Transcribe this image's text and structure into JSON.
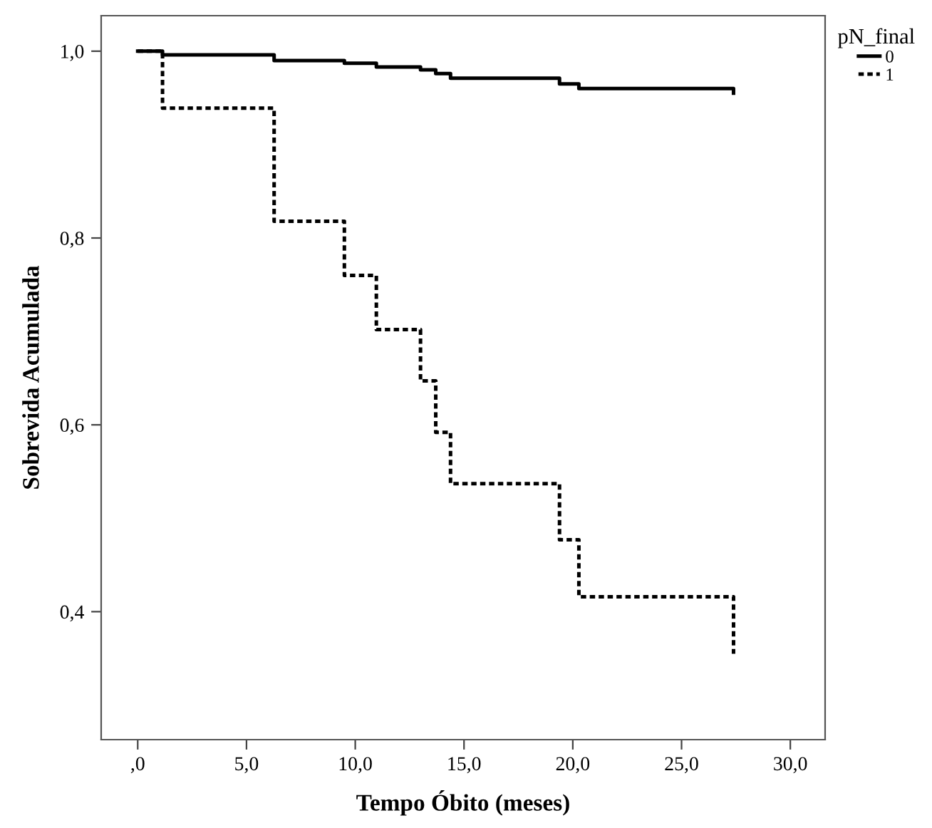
{
  "chart_data": {
    "type": "step",
    "xlabel": "Tempo Óbito (meses)",
    "ylabel": "Sobrevida Acumulada",
    "legend_title": "pN_final",
    "series": [
      {
        "name": "0",
        "color": "#000000",
        "line_style": "solid",
        "x": [
          0,
          1.14,
          6.27,
          9.5,
          10.97,
          13.0,
          13.7,
          14.38,
          19.39,
          20.28,
          27.39
        ],
        "values": [
          1.0,
          0.996,
          0.99,
          0.987,
          0.983,
          0.98,
          0.976,
          0.971,
          0.965,
          0.96,
          0.955
        ]
      },
      {
        "name": "1",
        "color": "#000000",
        "line_style": "dotted",
        "x": [
          0,
          1.14,
          6.27,
          9.5,
          10.97,
          13.0,
          13.7,
          14.38,
          19.39,
          20.28,
          27.39
        ],
        "values": [
          1.0,
          0.939,
          0.818,
          0.76,
          0.702,
          0.647,
          0.592,
          0.537,
          0.477,
          0.416,
          0.355
        ]
      }
    ],
    "xlim": [
      -1.68,
      31.6
    ],
    "ylim": [
      0.263,
      1.038
    ],
    "xticks": [
      {
        "value": 0,
        "label": ",0"
      },
      {
        "value": 5,
        "label": "5,0"
      },
      {
        "value": 10,
        "label": "10,0"
      },
      {
        "value": 15,
        "label": "15,0"
      },
      {
        "value": 20,
        "label": "20,0"
      },
      {
        "value": 25,
        "label": "25,0"
      },
      {
        "value": 30,
        "label": "30,0"
      }
    ],
    "yticks": [
      {
        "value": 0.4,
        "label": "0,4"
      },
      {
        "value": 0.6,
        "label": "0,6"
      },
      {
        "value": 0.8,
        "label": "0,8"
      },
      {
        "value": 1.0,
        "label": "1,0"
      }
    ],
    "grid": false,
    "legend": "top right",
    "marker": "none"
  }
}
